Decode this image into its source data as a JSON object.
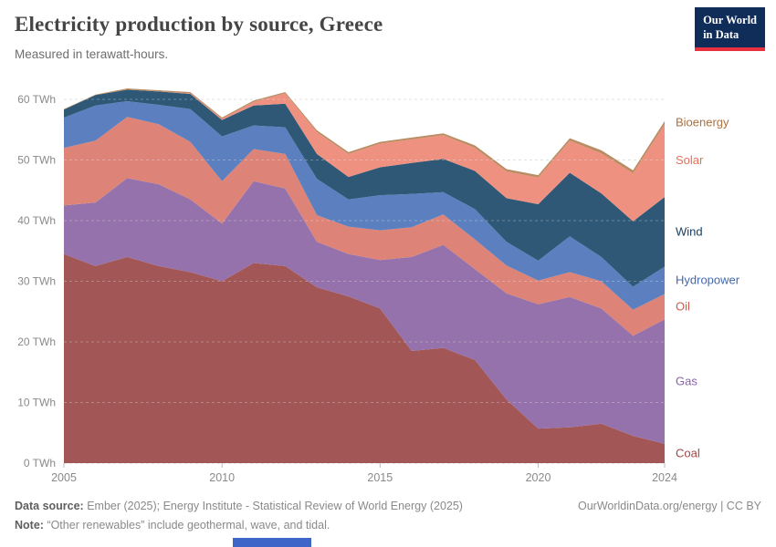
{
  "chart_data": {
    "type": "area",
    "stacked": true,
    "title": "Electricity production by source, Greece",
    "subtitle": "Measured in terawatt-hours.",
    "x": [
      2005,
      2006,
      2007,
      2008,
      2009,
      2010,
      2011,
      2012,
      2013,
      2014,
      2015,
      2016,
      2017,
      2018,
      2019,
      2020,
      2021,
      2022,
      2023,
      2024
    ],
    "series": [
      {
        "name": "Coal",
        "color": "#a25656",
        "label_color": "#a14848",
        "values": [
          34.5,
          32.5,
          34,
          32.5,
          31.5,
          30,
          33,
          32.5,
          29,
          27.5,
          25.5,
          18.5,
          19,
          17,
          10.5,
          5.7,
          5.9,
          6.5,
          4.5,
          3.2
        ]
      },
      {
        "name": "Gas",
        "color": "#9572ab",
        "label_color": "#8a63a6",
        "values": [
          8,
          10.5,
          13,
          13.5,
          12,
          9.5,
          13.5,
          12.8,
          7.5,
          7,
          8,
          15.5,
          17,
          15,
          17.5,
          20.5,
          21.5,
          19,
          16.5,
          20.5
        ]
      },
      {
        "name": "Oil",
        "color": "#dd8377",
        "label_color": "#cf5a4e",
        "values": [
          9.5,
          10.2,
          10.1,
          9.9,
          9.5,
          7,
          5.3,
          5.7,
          4.4,
          4.5,
          4.9,
          4.9,
          5,
          4.9,
          4.6,
          3.9,
          4.1,
          4.5,
          4.3,
          4.2
        ]
      },
      {
        "name": "Hydropower",
        "color": "#5c80bf",
        "label_color": "#4268b0",
        "values": [
          5,
          5.8,
          2.6,
          3.2,
          5.4,
          7.4,
          3.9,
          4.4,
          6,
          4.5,
          5.8,
          5.5,
          3.7,
          5,
          3.9,
          3.3,
          5.9,
          4,
          3.8,
          4.5
        ]
      },
      {
        "name": "Wind",
        "color": "#2f5877",
        "label_color": "#1a3e63",
        "values": [
          1.3,
          1.7,
          1.9,
          2.2,
          2.5,
          2.7,
          3.3,
          3.9,
          4.1,
          3.7,
          4.6,
          5.1,
          5.5,
          6.3,
          7.2,
          9.3,
          10.5,
          10.5,
          10.8,
          11.5
        ]
      },
      {
        "name": "Solar",
        "color": "#ee9180",
        "label_color": "#e5705b",
        "values": [
          0,
          0,
          0,
          0,
          0.1,
          0.2,
          0.6,
          1.7,
          3.6,
          3.8,
          3.9,
          3.9,
          3.9,
          3.8,
          4.4,
          4.4,
          5.3,
          6.6,
          7.9,
          12
        ]
      },
      {
        "name": "Bioenergy",
        "color": "#b98c62",
        "label_color": "#a8713f",
        "values": [
          0.1,
          0.1,
          0.2,
          0.2,
          0.2,
          0.2,
          0.2,
          0.2,
          0.3,
          0.3,
          0.3,
          0.3,
          0.3,
          0.4,
          0.4,
          0.4,
          0.4,
          0.5,
          0.5,
          0.5
        ]
      }
    ],
    "ylim": [
      0,
      60
    ],
    "yticks": [
      0,
      10,
      20,
      30,
      40,
      50,
      60
    ],
    "ytick_format": "{v} TWh",
    "xticks": [
      2005,
      2010,
      2015,
      2020,
      2024
    ],
    "grid": "horizontal-dashed",
    "legend_position": "right-edge-labels"
  },
  "logo": {
    "line1": "Our World",
    "line2": "in Data",
    "bg_color": "#102d59",
    "accent_color": "#e8303f"
  },
  "footer": {
    "datasource_label": "Data source:",
    "datasource_text": " Ember (2025); Energy Institute - Statistical Review of World Energy (2025)",
    "note_label": "Note:",
    "note_text": " “Other renewables” include geothermal, wave, and tidal.",
    "link_text": "OurWorldinData.org/energy | CC BY"
  },
  "misc": {
    "bottom_bar_color": "#4065c9"
  }
}
